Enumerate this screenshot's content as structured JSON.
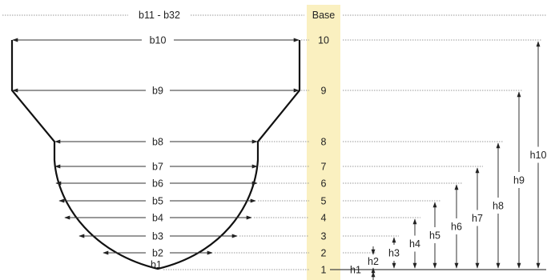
{
  "top_span_label": "b11 - b32",
  "base_label": "Base",
  "widths": [
    {
      "level": "1",
      "label": "b1"
    },
    {
      "level": "2",
      "label": "b2"
    },
    {
      "level": "3",
      "label": "b3"
    },
    {
      "level": "4",
      "label": "b4"
    },
    {
      "level": "5",
      "label": "b5"
    },
    {
      "level": "6",
      "label": "b6"
    },
    {
      "level": "7",
      "label": "b7"
    },
    {
      "level": "8",
      "label": "b8"
    },
    {
      "level": "9",
      "label": "b9"
    },
    {
      "level": "10",
      "label": "b10"
    }
  ],
  "heights": [
    "h1",
    "h2",
    "h3",
    "h4",
    "h5",
    "h6",
    "h7",
    "h8",
    "h9",
    "h10"
  ],
  "colors": {
    "base_band": "#faf0c0",
    "line": "#444444",
    "dotted": "#9a9a9a",
    "shape": "#111111"
  }
}
